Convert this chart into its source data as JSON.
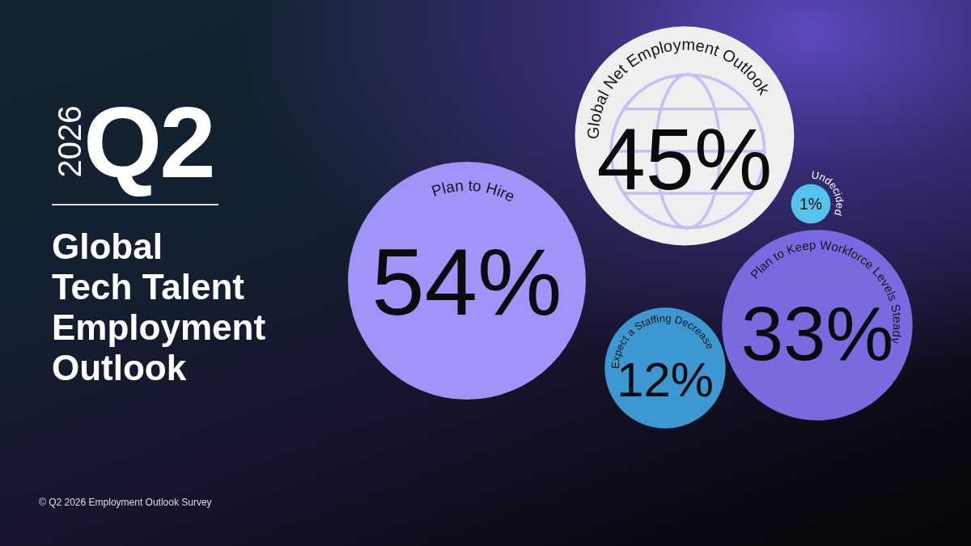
{
  "chart_data": {
    "type": "other",
    "title": "Global Tech Talent Employment Outlook",
    "annotations": [
      "2026",
      "Q2",
      "© Q2 2026 Employment Outlook Survey"
    ],
    "categories": [
      "Plan to Hire",
      "Global Net Employment Outlook",
      "Undecided",
      "Plan to Keep Workforce Levels Steady",
      "Expect a Staffing Decrease"
    ],
    "values": [
      54,
      45,
      1,
      33,
      12
    ],
    "value_labels": [
      "54%",
      "45%",
      "1%",
      "33%",
      "12%"
    ],
    "colors": [
      "#a194f8",
      "#efefef",
      "#55c3ec",
      "#7a6ae0",
      "#3d97d0"
    ]
  }
}
